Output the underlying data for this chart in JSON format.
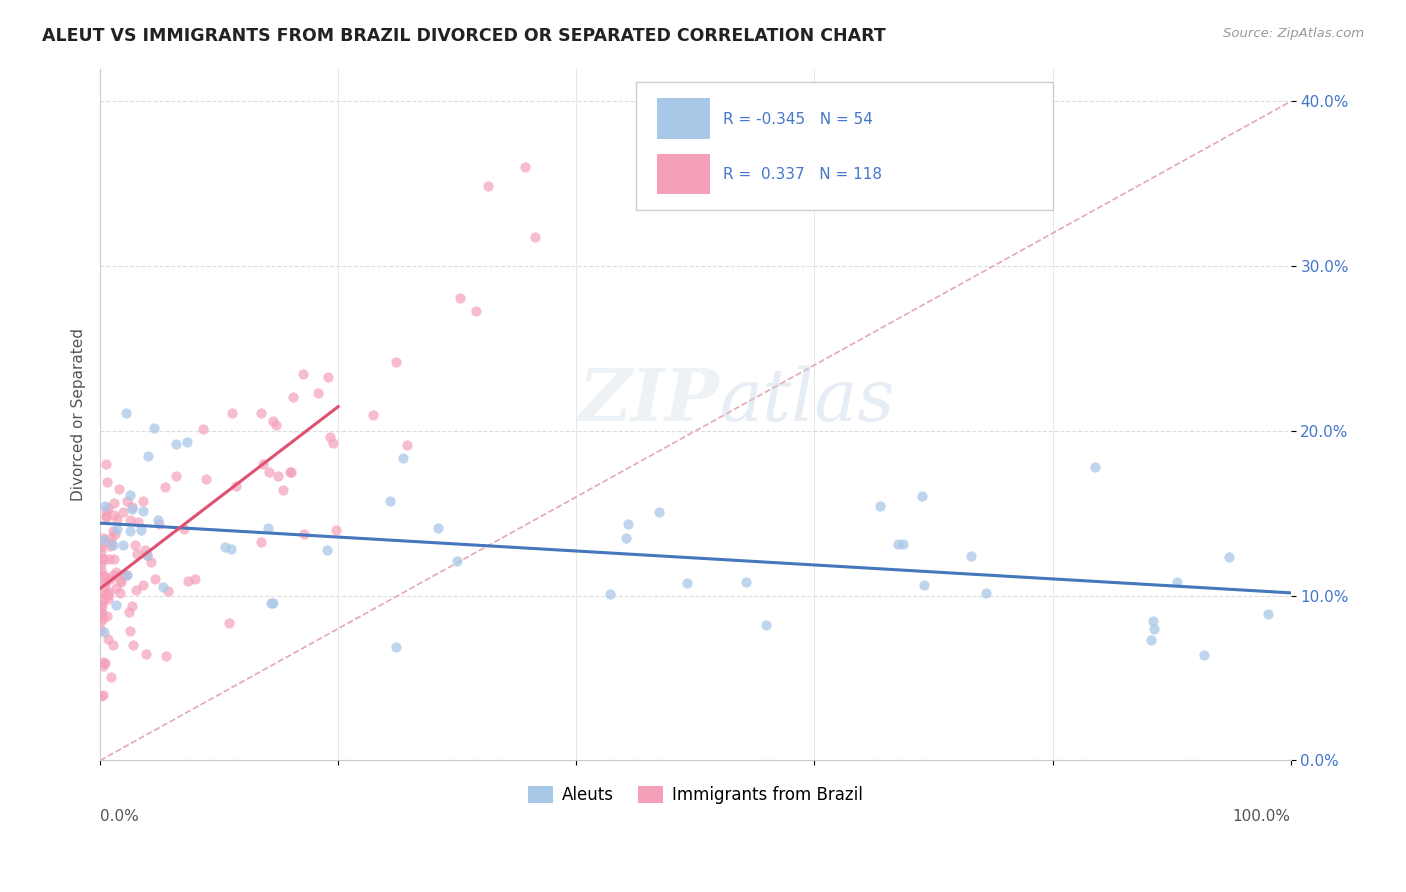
{
  "title": "ALEUT VS IMMIGRANTS FROM BRAZIL DIVORCED OR SEPARATED CORRELATION CHART",
  "source": "Source: ZipAtlas.com",
  "ylabel": "Divorced or Separated",
  "legend_aleuts": "Aleuts",
  "legend_brazil": "Immigrants from Brazil",
  "aleuts_R": -0.345,
  "aleuts_N": 54,
  "brazil_R": 0.337,
  "brazil_N": 118,
  "aleuts_color": "#a8c8e8",
  "brazil_color": "#f4a0b8",
  "aleuts_line_color": "#4477bb",
  "brazil_line_color": "#e05070",
  "diag_line_color": "#e0a0a8",
  "background_color": "#ffffff",
  "legend_text_color": "#4477cc",
  "ytick_color": "#4477cc",
  "title_color": "#222222",
  "source_color": "#999999",
  "grid_color": "#dddddd",
  "xlim": [
    0.0,
    100.0
  ],
  "ylim": [
    0.0,
    42.0
  ],
  "yticks": [
    0,
    10,
    20,
    30,
    40
  ],
  "ytick_labels": [
    "0.0%",
    "10.0%",
    "20.0%",
    "30.0%",
    "40.0%"
  ]
}
